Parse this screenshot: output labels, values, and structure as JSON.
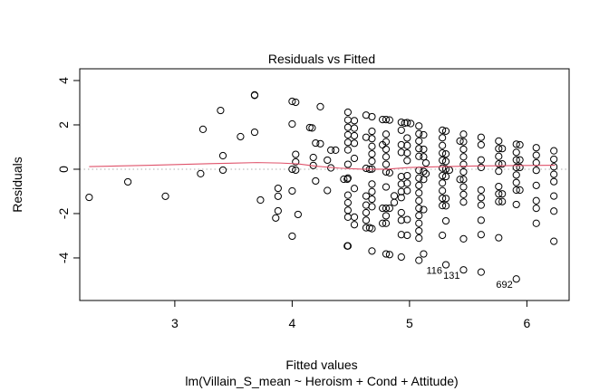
{
  "chart_data": {
    "type": "scatter",
    "title": "Residuals vs Fitted",
    "xlabel": "Fitted values",
    "subtitle": "lm(Villain_S_mean ~ Heroism + Cond + Attitude)",
    "ylabel": "Residuals",
    "xlim": [
      2.19,
      6.36
    ],
    "ylim": [
      -5.92,
      4.53
    ],
    "xticks": [
      3,
      4,
      5,
      6
    ],
    "yticks": [
      -4,
      -2,
      0,
      2,
      4
    ],
    "reference_line": 0,
    "colors": {
      "points": "#000000",
      "smoother": "#DF536B",
      "reference": "#BEBEBE"
    },
    "columns": [
      {
        "x": 2.27,
        "y": [
          -1.27
        ]
      },
      {
        "x": 2.6,
        "y": [
          -0.57
        ]
      },
      {
        "x": 2.92,
        "y": [
          -1.22
        ]
      },
      {
        "x": 3.22,
        "y": [
          -0.2
        ]
      },
      {
        "x": 3.24,
        "y": [
          1.8
        ]
      },
      {
        "x": 3.39,
        "y": [
          2.65
        ]
      },
      {
        "x": 3.41,
        "y": [
          0.61,
          -0.04
        ]
      },
      {
        "x": 3.56,
        "y": [
          1.47
        ]
      },
      {
        "x": 3.68,
        "y": [
          3.35,
          3.33,
          1.67
        ]
      },
      {
        "x": 3.73,
        "y": [
          -1.39
        ]
      },
      {
        "x": 3.86,
        "y": [
          -2.2
        ]
      },
      {
        "x": 3.88,
        "y": [
          -1.88,
          -1.22,
          -0.86
        ]
      },
      {
        "x": 4.0,
        "y": [
          3.06,
          2.04,
          0.0,
          -0.98,
          -3.02
        ]
      },
      {
        "x": 4.03,
        "y": [
          3.02,
          0.67,
          0.33,
          -0.04
        ]
      },
      {
        "x": 4.05,
        "y": [
          -2.04
        ]
      },
      {
        "x": 4.15,
        "y": [
          1.88
        ]
      },
      {
        "x": 4.17,
        "y": [
          1.86
        ]
      },
      {
        "x": 4.18,
        "y": [
          0.53,
          0.17
        ]
      },
      {
        "x": 4.2,
        "y": [
          1.18,
          -0.53
        ]
      },
      {
        "x": 4.24,
        "y": [
          2.82,
          1.15
        ]
      },
      {
        "x": 4.3,
        "y": [
          0.41,
          -0.96
        ]
      },
      {
        "x": 4.33,
        "y": [
          0.86,
          0.06
        ]
      },
      {
        "x": 4.37,
        "y": [
          0.86
        ]
      },
      {
        "x": 4.44,
        "y": [
          -0.45
        ]
      },
      {
        "x": 4.47,
        "y": [
          -0.45,
          -3.46
        ]
      },
      {
        "x": 4.475,
        "y": [
          2.57,
          2.22,
          1.89,
          1.55,
          1.21,
          0.87,
          0.22,
          -0.4,
          -1.17,
          -1.51,
          -1.85,
          -2.16,
          -3.46
        ]
      },
      {
        "x": 4.53,
        "y": [
          2.19,
          1.85,
          1.51,
          1.17,
          0.49,
          -0.87,
          -2.16,
          -2.5
        ]
      },
      {
        "x": 4.63,
        "y": [
          2.44,
          1.44,
          0.04,
          -1.21,
          -1.62,
          -1.96,
          -2.3,
          -2.64
        ]
      },
      {
        "x": 4.66,
        "y": [
          -2.64,
          -0.0
        ]
      },
      {
        "x": 4.68,
        "y": [
          2.37,
          1.71,
          1.38,
          1.03,
          0.69,
          0.36,
          0.01,
          -0.67,
          -1.01,
          -1.35,
          -1.69,
          -2.68,
          -3.69
        ]
      },
      {
        "x": 4.77,
        "y": [
          2.24,
          1.1,
          -1.76,
          -2.44
        ]
      },
      {
        "x": 4.8,
        "y": [
          2.24,
          1.58,
          1.24,
          0.9,
          0.56,
          0.22,
          -0.12,
          -0.8,
          -1.76,
          -2.1,
          -2.44,
          -3.82
        ]
      },
      {
        "x": 4.83,
        "y": [
          2.22,
          -0.16,
          -1.76,
          -3.85
        ]
      },
      {
        "x": 4.87,
        "y": [
          -1.5,
          -1.2
        ]
      },
      {
        "x": 4.93,
        "y": [
          2.12,
          1.76,
          1.1,
          0.76,
          -0.33,
          -0.67,
          -1.01,
          -1.28,
          -1.96,
          -2.3,
          -2.95,
          -3.96
        ]
      },
      {
        "x": 4.96,
        "y": [
          2.08
        ]
      },
      {
        "x": 4.98,
        "y": [
          2.1,
          1.41,
          1.07,
          0.73,
          0.39,
          -0.29,
          -0.63,
          -0.97,
          -2.27,
          -2.98
        ]
      },
      {
        "x": 5.01,
        "y": [
          2.06
        ]
      },
      {
        "x": 5.08,
        "y": [
          1.95,
          1.6,
          1.27,
          0.93,
          0.58,
          -0.05,
          -0.4,
          -0.73,
          -1.07,
          -1.42,
          -1.76,
          -2.09,
          -2.44,
          -2.78,
          -3.11,
          -4.11
        ]
      },
      {
        "x": 5.12,
        "y": [
          1.55,
          0.9,
          0.56,
          -0.1,
          -0.46,
          -1.82,
          -3.82
        ]
      },
      {
        "x": 5.14,
        "y": [
          0.28,
          -0.2
        ]
      },
      {
        "x": 5.28,
        "y": [
          1.76,
          1.42,
          1.07,
          0.73,
          0.4,
          0.05,
          -0.29,
          -0.62,
          -0.97,
          -1.31,
          -1.64,
          -2.98
        ]
      },
      {
        "x": 5.31,
        "y": [
          1.72,
          0.69,
          0.35,
          0.01,
          -0.33,
          -1.32,
          -1.65,
          -2.33,
          -4.31
        ]
      },
      {
        "x": 5.34,
        "y": [
          -0.04
        ]
      },
      {
        "x": 5.43,
        "y": [
          1.27,
          -0.46
        ]
      },
      {
        "x": 5.46,
        "y": [
          1.58,
          1.24,
          0.9,
          0.56,
          0.22,
          -0.12,
          -0.46,
          -0.8,
          -1.14,
          -1.48,
          -3.14,
          -4.54
        ]
      },
      {
        "x": 5.61,
        "y": [
          1.44,
          1.1,
          0.42,
          0.08,
          -0.94,
          -1.28,
          -1.62,
          -2.3,
          -2.95,
          -4.64
        ]
      },
      {
        "x": 5.76,
        "y": [
          1.27,
          0.93,
          0.58,
          0.24,
          -0.09,
          -0.78,
          -1.11,
          -1.46,
          -3.09
        ]
      },
      {
        "x": 5.79,
        "y": [
          0.93,
          0.24,
          -1.11,
          -1.46
        ]
      },
      {
        "x": 5.91,
        "y": [
          1.13,
          0.76,
          0.42,
          0.08,
          -0.26,
          -0.6,
          -0.94,
          -1.59,
          -4.95
        ]
      },
      {
        "x": 5.94,
        "y": [
          1.1,
          0.42,
          0.08,
          -0.94
        ]
      },
      {
        "x": 6.08,
        "y": [
          0.97,
          0.63,
          0.29,
          -0.05,
          -0.73,
          -1.42,
          -1.76,
          -2.44
        ]
      },
      {
        "x": 6.23,
        "y": [
          0.83,
          0.45,
          0.11,
          -0.23,
          -0.56,
          -1.21,
          -1.89,
          -3.25
        ]
      }
    ],
    "smoother": [
      [
        2.27,
        0.12
      ],
      [
        2.8,
        0.18
      ],
      [
        3.3,
        0.25
      ],
      [
        3.7,
        0.3
      ],
      [
        3.9,
        0.28
      ],
      [
        4.05,
        0.24
      ],
      [
        4.2,
        0.14
      ],
      [
        4.4,
        0.05
      ],
      [
        4.6,
        0.0
      ],
      [
        4.8,
        0.0
      ],
      [
        5.0,
        0.08
      ],
      [
        5.3,
        0.12
      ],
      [
        5.6,
        0.15
      ],
      [
        6.0,
        0.17
      ],
      [
        6.24,
        0.18
      ]
    ],
    "annotations": [
      {
        "label": "116",
        "x": 5.31,
        "y": -4.31
      },
      {
        "label": "131",
        "x": 5.46,
        "y": -4.54
      },
      {
        "label": "692",
        "x": 5.91,
        "y": -4.95
      }
    ]
  }
}
